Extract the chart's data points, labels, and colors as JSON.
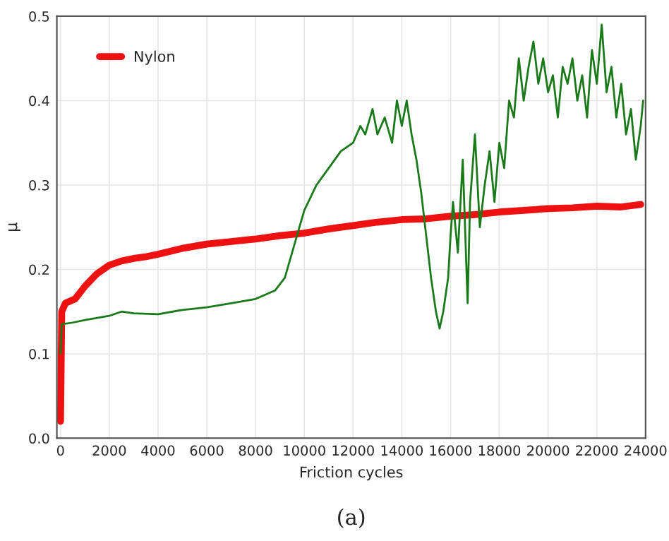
{
  "chart_data": {
    "type": "line",
    "xlabel": "Friction cycles",
    "ylabel": "μ",
    "annotations": [
      "(a)"
    ],
    "xlim": [
      -150,
      24000
    ],
    "xticks": [
      0,
      2000,
      4000,
      6000,
      8000,
      10000,
      12000,
      14000,
      16000,
      18000,
      20000,
      22000,
      24000
    ],
    "ylim": [
      0.0,
      0.5
    ],
    "yticks": [
      {
        "value": 0.0,
        "label": "0.0"
      },
      0.1,
      0.2,
      0.3,
      0.4,
      0.5
    ],
    "grid": true,
    "legend": "top left",
    "marker": "none",
    "line_style": "solid",
    "series": [
      {
        "name": "Nylon",
        "color": "#ee1111",
        "x": [
          0,
          50,
          200,
          600,
          1000,
          1500,
          2000,
          2500,
          3000,
          3500,
          4000,
          5000,
          6000,
          7000,
          8000,
          9000,
          10000,
          11000,
          12000,
          13000,
          14000,
          15000,
          16000,
          17000,
          18000,
          19000,
          20000,
          21000,
          22000,
          23000,
          23800
        ],
        "values": [
          0.02,
          0.15,
          0.16,
          0.165,
          0.18,
          0.195,
          0.205,
          0.21,
          0.213,
          0.215,
          0.218,
          0.225,
          0.23,
          0.233,
          0.236,
          0.24,
          0.243,
          0.248,
          0.252,
          0.256,
          0.259,
          0.26,
          0.263,
          0.265,
          0.268,
          0.27,
          0.272,
          0.273,
          0.275,
          0.274,
          0.277
        ]
      },
      {
        "color": "#1a7a1a",
        "x": [
          0,
          50,
          500,
          1000,
          2000,
          2500,
          3000,
          4000,
          5000,
          6000,
          7000,
          8000,
          8800,
          9200,
          9500,
          9800,
          10000,
          10500,
          11000,
          11500,
          12000,
          12300,
          12500,
          12800,
          13000,
          13300,
          13600,
          13800,
          14000,
          14200,
          14400,
          14600,
          14800,
          15000,
          15200,
          15400,
          15550,
          15700,
          15900,
          16000,
          16100,
          16300,
          16500,
          16700,
          16800,
          17000,
          17200,
          17400,
          17600,
          17800,
          18000,
          18200,
          18400,
          18600,
          18800,
          19000,
          19200,
          19400,
          19600,
          19800,
          20000,
          20200,
          20400,
          20600,
          20800,
          21000,
          21200,
          21400,
          21600,
          21800,
          22000,
          22200,
          22400,
          22600,
          22800,
          23000,
          23200,
          23400,
          23600,
          23800,
          23900
        ],
        "values": [
          0.1,
          0.135,
          0.137,
          0.14,
          0.145,
          0.15,
          0.148,
          0.147,
          0.152,
          0.155,
          0.16,
          0.165,
          0.175,
          0.19,
          0.22,
          0.25,
          0.27,
          0.3,
          0.32,
          0.34,
          0.35,
          0.37,
          0.36,
          0.39,
          0.36,
          0.38,
          0.35,
          0.4,
          0.37,
          0.4,
          0.36,
          0.33,
          0.29,
          0.24,
          0.19,
          0.15,
          0.13,
          0.15,
          0.19,
          0.24,
          0.28,
          0.22,
          0.33,
          0.16,
          0.28,
          0.36,
          0.25,
          0.3,
          0.34,
          0.28,
          0.35,
          0.32,
          0.4,
          0.38,
          0.45,
          0.4,
          0.44,
          0.47,
          0.42,
          0.45,
          0.41,
          0.43,
          0.38,
          0.44,
          0.42,
          0.45,
          0.4,
          0.43,
          0.38,
          0.46,
          0.42,
          0.49,
          0.41,
          0.44,
          0.38,
          0.42,
          0.36,
          0.39,
          0.33,
          0.37,
          0.4
        ]
      }
    ]
  }
}
